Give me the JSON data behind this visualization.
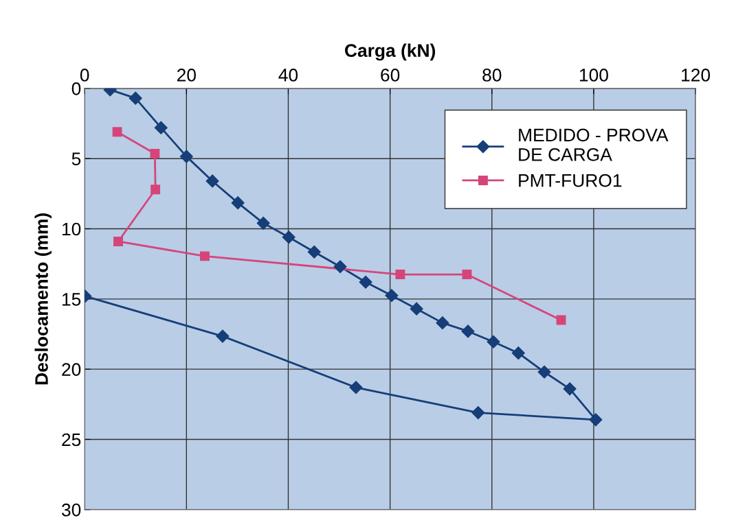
{
  "chart_data": {
    "type": "line",
    "xlabel": "Carga (kN)",
    "ylabel": "Deslocamento (mm)",
    "xlim": [
      0,
      120
    ],
    "xticks": [
      0,
      20,
      40,
      60,
      80,
      100,
      120
    ],
    "ylim": [
      30,
      0
    ],
    "yticks": [
      0,
      5,
      10,
      15,
      20,
      25,
      30
    ],
    "grid": true,
    "legend": "top right",
    "line_style": "solid",
    "series": [
      {
        "name": "MEDIDO - PROVA\nDE CARGA",
        "color": "#163e78",
        "marker": "diamond",
        "x": [
          5,
          10,
          15,
          20,
          25.1,
          30.1,
          35.1,
          40.1,
          45.1,
          50.2,
          55.2,
          60.3,
          65.2,
          70.3,
          75.3,
          80.3,
          85.2,
          90.3,
          95.3,
          100.4,
          77.3,
          53.3,
          27.1,
          0.1
        ],
        "values": [
          0.1,
          0.7,
          2.8,
          4.85,
          6.6,
          8.15,
          9.6,
          10.6,
          11.65,
          12.7,
          13.8,
          14.75,
          15.7,
          16.7,
          17.3,
          18.05,
          18.85,
          20.2,
          21.4,
          23.6,
          23.1,
          21.3,
          17.65,
          14.8
        ]
      },
      {
        "name": "PMT-FURO1",
        "color": "#d6457a",
        "marker": "square",
        "x": [
          6.4,
          13.8,
          13.9,
          6.6,
          23.6,
          62,
          75.1,
          93.6
        ],
        "values": [
          3.1,
          4.65,
          7.2,
          10.9,
          11.95,
          13.25,
          13.25,
          16.5
        ]
      }
    ]
  }
}
